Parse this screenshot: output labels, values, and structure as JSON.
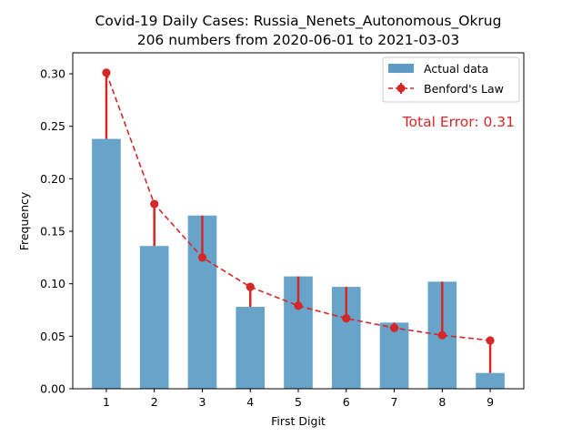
{
  "chart_data": {
    "type": "bar",
    "title": "Covid-19 Daily Cases: Russia_Nenets_Autonomous_Okrug",
    "subtitle": "206 numbers from 2020-06-01 to 2021-03-03",
    "xlabel": "First Digit",
    "ylabel": "Frequency",
    "categories": [
      "1",
      "2",
      "3",
      "4",
      "5",
      "6",
      "7",
      "8",
      "9"
    ],
    "series": [
      {
        "name": "Actual data",
        "kind": "bar",
        "color": "#5b9bc6",
        "values": [
          0.238,
          0.136,
          0.165,
          0.078,
          0.107,
          0.097,
          0.063,
          0.102,
          0.015
        ]
      },
      {
        "name": "Benford's Law",
        "kind": "line",
        "color": "#d62728",
        "values": [
          0.301,
          0.176,
          0.125,
          0.097,
          0.079,
          0.067,
          0.058,
          0.051,
          0.046
        ]
      }
    ],
    "ylim": [
      0,
      0.32
    ],
    "yticks": [
      "0.00",
      "0.05",
      "0.10",
      "0.15",
      "0.20",
      "0.25",
      "0.30"
    ],
    "ytick_values": [
      0,
      0.05,
      0.1,
      0.15,
      0.2,
      0.25,
      0.3
    ],
    "annotation": "Total Error: 0.31",
    "legend_position": "top-right",
    "grid": false
  }
}
